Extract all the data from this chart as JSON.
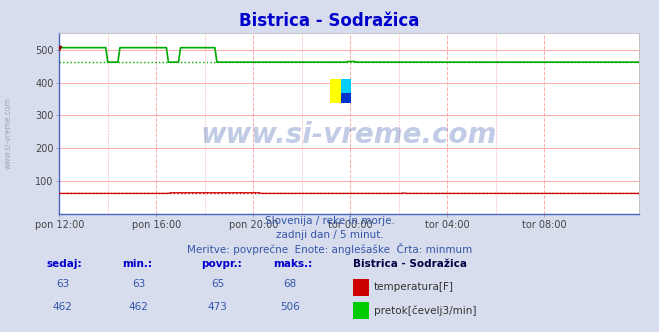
{
  "title": "Bistrica - Sodražica",
  "title_color": "#0000cc",
  "bg_color": "#d8dded",
  "plot_bg_color": "#ffffff",
  "grid_color_h": "#ffaaaa",
  "grid_color_v": "#ffaaaa",
  "xlim": [
    0,
    287
  ],
  "ylim": [
    0,
    550
  ],
  "yticks": [
    100,
    200,
    300,
    400,
    500
  ],
  "xtick_labels": [
    "pon 12:00",
    "pon 16:00",
    "pon 20:00",
    "tor 00:00",
    "tor 04:00",
    "tor 08:00"
  ],
  "xtick_positions": [
    0,
    48,
    96,
    144,
    192,
    240
  ],
  "watermark": "www.si-vreme.com",
  "watermark_color": "#3355aa",
  "subtitle1": "Slovenija / reke in morje.",
  "subtitle2": "zadnji dan / 5 minut.",
  "subtitle3": "Meritve: povprečne  Enote: anglešaške  Črta: minmum",
  "subtitle_color": "#3355aa",
  "footer_label_color": "#0000cc",
  "footer_value_color": "#3355aa",
  "temp_color": "#cc0000",
  "flow_color": "#00aa00",
  "temp_sedaj": 63,
  "temp_min": 63,
  "temp_povpr": 65,
  "temp_maks": 68,
  "flow_sedaj": 462,
  "flow_min": 462,
  "flow_povpr": 473,
  "flow_maks": 506,
  "station_label": "Bistrica - Sodražica",
  "legend_temp": "temperatura[F]",
  "legend_flow": "pretok[čevelj3/min]",
  "left_label": "www.si-vreme.com",
  "left_label_color": "#99aabb"
}
